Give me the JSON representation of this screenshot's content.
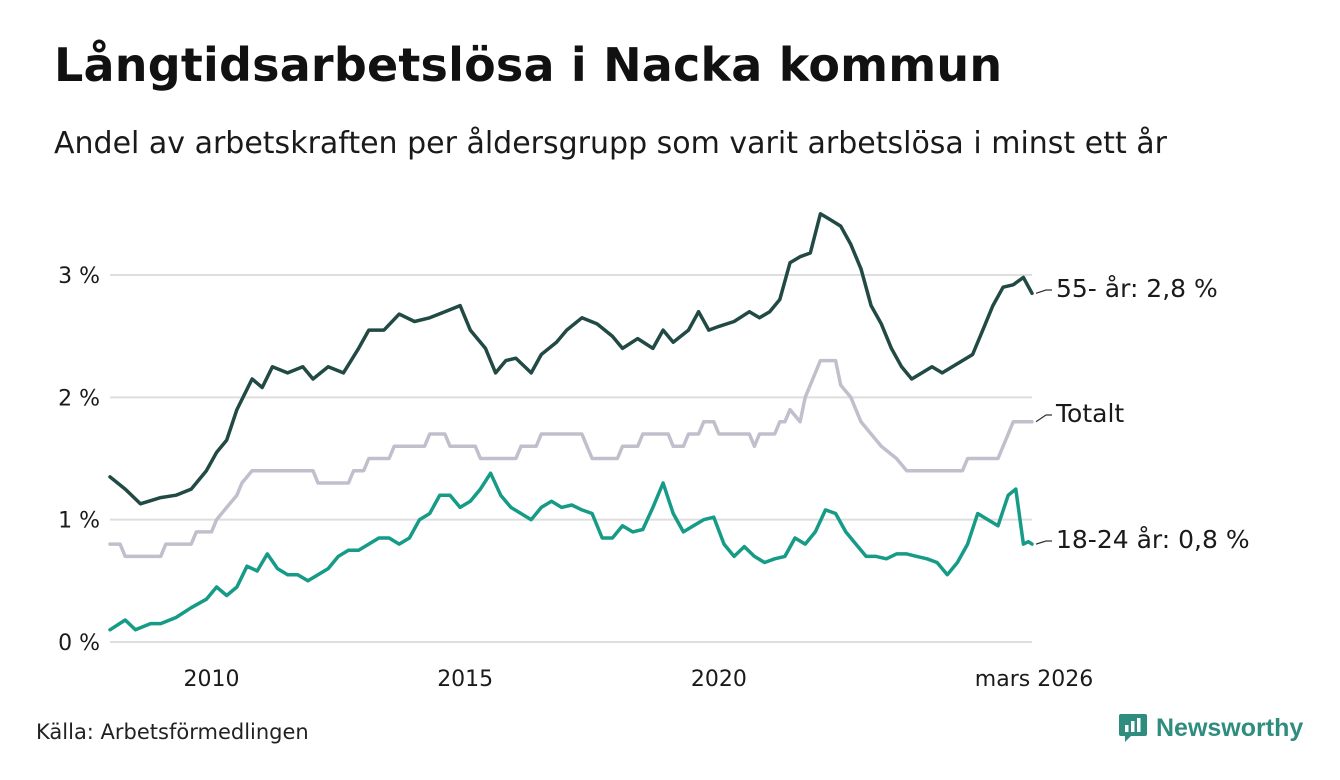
{
  "title": "Långtidsarbetslösa i Nacka kommun",
  "subtitle": "Andel av arbetskraften per åldersgrupp som varit arbetslösa i minst ett år",
  "source": "Källa: Arbetsförmedlingen",
  "brand": "Newsworthy",
  "colors": {
    "series_55": "#224a45",
    "series_total": "#c2bfcc",
    "series_18": "#169b87",
    "grid": "#dedede",
    "brand": "#2e8d7e"
  },
  "chart_data": {
    "type": "line",
    "title": "Långtidsarbetslösa i Nacka kommun",
    "xlabel": "",
    "ylabel": "",
    "xlim": [
      2008.0,
      2026.17
    ],
    "ylim": [
      0,
      3.6
    ],
    "y_ticks": [
      {
        "value": 0,
        "label": "0 %"
      },
      {
        "value": 1,
        "label": "1 %"
      },
      {
        "value": 2,
        "label": "2 %"
      },
      {
        "value": 3,
        "label": "3 %"
      }
    ],
    "x_ticks": [
      {
        "value": 2010,
        "label": "2010"
      },
      {
        "value": 2015,
        "label": "2015"
      },
      {
        "value": 2020,
        "label": "2020"
      },
      {
        "value": 2026.17,
        "label": "mars 2026"
      }
    ],
    "series": [
      {
        "name": "55- år",
        "end_label": "55- år: 2,8 %",
        "color": "#224a45",
        "points": [
          [
            2008.0,
            1.35
          ],
          [
            2008.3,
            1.25
          ],
          [
            2008.6,
            1.13
          ],
          [
            2009.0,
            1.18
          ],
          [
            2009.3,
            1.2
          ],
          [
            2009.6,
            1.25
          ],
          [
            2009.9,
            1.4
          ],
          [
            2010.1,
            1.55
          ],
          [
            2010.3,
            1.65
          ],
          [
            2010.5,
            1.9
          ],
          [
            2010.8,
            2.15
          ],
          [
            2011.0,
            2.08
          ],
          [
            2011.2,
            2.25
          ],
          [
            2011.5,
            2.2
          ],
          [
            2011.8,
            2.25
          ],
          [
            2012.0,
            2.15
          ],
          [
            2012.3,
            2.25
          ],
          [
            2012.6,
            2.2
          ],
          [
            2012.9,
            2.4
          ],
          [
            2013.1,
            2.55
          ],
          [
            2013.4,
            2.55
          ],
          [
            2013.7,
            2.68
          ],
          [
            2014.0,
            2.62
          ],
          [
            2014.3,
            2.65
          ],
          [
            2014.6,
            2.7
          ],
          [
            2014.9,
            2.75
          ],
          [
            2015.1,
            2.55
          ],
          [
            2015.4,
            2.4
          ],
          [
            2015.6,
            2.2
          ],
          [
            2015.8,
            2.3
          ],
          [
            2016.0,
            2.32
          ],
          [
            2016.3,
            2.2
          ],
          [
            2016.5,
            2.35
          ],
          [
            2016.8,
            2.45
          ],
          [
            2017.0,
            2.55
          ],
          [
            2017.3,
            2.65
          ],
          [
            2017.6,
            2.6
          ],
          [
            2017.9,
            2.5
          ],
          [
            2018.1,
            2.4
          ],
          [
            2018.4,
            2.48
          ],
          [
            2018.7,
            2.4
          ],
          [
            2018.9,
            2.55
          ],
          [
            2019.1,
            2.45
          ],
          [
            2019.4,
            2.55
          ],
          [
            2019.6,
            2.7
          ],
          [
            2019.8,
            2.55
          ],
          [
            2020.0,
            2.58
          ],
          [
            2020.3,
            2.62
          ],
          [
            2020.6,
            2.7
          ],
          [
            2020.8,
            2.65
          ],
          [
            2021.0,
            2.7
          ],
          [
            2021.2,
            2.8
          ],
          [
            2021.4,
            3.1
          ],
          [
            2021.6,
            3.15
          ],
          [
            2021.8,
            3.18
          ],
          [
            2022.0,
            3.5
          ],
          [
            2022.2,
            3.45
          ],
          [
            2022.4,
            3.4
          ],
          [
            2022.6,
            3.25
          ],
          [
            2022.8,
            3.05
          ],
          [
            2023.0,
            2.75
          ],
          [
            2023.2,
            2.6
          ],
          [
            2023.4,
            2.4
          ],
          [
            2023.6,
            2.25
          ],
          [
            2023.8,
            2.15
          ],
          [
            2024.0,
            2.2
          ],
          [
            2024.2,
            2.25
          ],
          [
            2024.4,
            2.2
          ],
          [
            2024.6,
            2.25
          ],
          [
            2024.8,
            2.3
          ],
          [
            2025.0,
            2.35
          ],
          [
            2025.2,
            2.55
          ],
          [
            2025.4,
            2.75
          ],
          [
            2025.6,
            2.9
          ],
          [
            2025.8,
            2.92
          ],
          [
            2026.0,
            2.98
          ],
          [
            2026.17,
            2.85
          ]
        ]
      },
      {
        "name": "Totalt",
        "end_label": "Totalt",
        "color": "#c2bfcc",
        "points": [
          [
            2008.0,
            0.8
          ],
          [
            2008.2,
            0.8
          ],
          [
            2008.3,
            0.7
          ],
          [
            2009.0,
            0.7
          ],
          [
            2009.1,
            0.8
          ],
          [
            2009.6,
            0.8
          ],
          [
            2009.7,
            0.9
          ],
          [
            2010.0,
            0.9
          ],
          [
            2010.1,
            1.0
          ],
          [
            2010.3,
            1.1
          ],
          [
            2010.5,
            1.2
          ],
          [
            2010.6,
            1.3
          ],
          [
            2010.8,
            1.4
          ],
          [
            2012.0,
            1.4
          ],
          [
            2012.1,
            1.3
          ],
          [
            2012.7,
            1.3
          ],
          [
            2012.8,
            1.4
          ],
          [
            2013.0,
            1.4
          ],
          [
            2013.1,
            1.5
          ],
          [
            2013.5,
            1.5
          ],
          [
            2013.6,
            1.6
          ],
          [
            2014.2,
            1.6
          ],
          [
            2014.3,
            1.7
          ],
          [
            2014.6,
            1.7
          ],
          [
            2014.7,
            1.6
          ],
          [
            2015.2,
            1.6
          ],
          [
            2015.3,
            1.5
          ],
          [
            2016.0,
            1.5
          ],
          [
            2016.1,
            1.6
          ],
          [
            2016.4,
            1.6
          ],
          [
            2016.5,
            1.7
          ],
          [
            2017.3,
            1.7
          ],
          [
            2017.4,
            1.6
          ],
          [
            2017.5,
            1.5
          ],
          [
            2018.0,
            1.5
          ],
          [
            2018.1,
            1.6
          ],
          [
            2018.4,
            1.6
          ],
          [
            2018.5,
            1.7
          ],
          [
            2019.0,
            1.7
          ],
          [
            2019.1,
            1.6
          ],
          [
            2019.3,
            1.6
          ],
          [
            2019.4,
            1.7
          ],
          [
            2019.6,
            1.7
          ],
          [
            2019.7,
            1.8
          ],
          [
            2019.9,
            1.8
          ],
          [
            2020.0,
            1.7
          ],
          [
            2020.6,
            1.7
          ],
          [
            2020.7,
            1.6
          ],
          [
            2020.8,
            1.7
          ],
          [
            2021.1,
            1.7
          ],
          [
            2021.2,
            1.8
          ],
          [
            2021.3,
            1.8
          ],
          [
            2021.4,
            1.9
          ],
          [
            2021.6,
            1.8
          ],
          [
            2021.7,
            2.0
          ],
          [
            2021.9,
            2.2
          ],
          [
            2022.0,
            2.3
          ],
          [
            2022.3,
            2.3
          ],
          [
            2022.4,
            2.1
          ],
          [
            2022.6,
            2.0
          ],
          [
            2022.7,
            1.9
          ],
          [
            2022.8,
            1.8
          ],
          [
            2023.0,
            1.7
          ],
          [
            2023.2,
            1.6
          ],
          [
            2023.5,
            1.5
          ],
          [
            2023.7,
            1.4
          ],
          [
            2024.8,
            1.4
          ],
          [
            2024.9,
            1.5
          ],
          [
            2025.5,
            1.5
          ],
          [
            2025.6,
            1.6
          ],
          [
            2025.7,
            1.7
          ],
          [
            2025.8,
            1.8
          ],
          [
            2026.17,
            1.8
          ]
        ]
      },
      {
        "name": "18-24 år",
        "end_label": "18-24 år: 0,8 %",
        "color": "#169b87",
        "points": [
          [
            2008.0,
            0.1
          ],
          [
            2008.3,
            0.18
          ],
          [
            2008.5,
            0.1
          ],
          [
            2008.8,
            0.15
          ],
          [
            2009.0,
            0.15
          ],
          [
            2009.3,
            0.2
          ],
          [
            2009.6,
            0.28
          ],
          [
            2009.9,
            0.35
          ],
          [
            2010.1,
            0.45
          ],
          [
            2010.3,
            0.38
          ],
          [
            2010.5,
            0.45
          ],
          [
            2010.7,
            0.62
          ],
          [
            2010.9,
            0.58
          ],
          [
            2011.1,
            0.72
          ],
          [
            2011.3,
            0.6
          ],
          [
            2011.5,
            0.55
          ],
          [
            2011.7,
            0.55
          ],
          [
            2011.9,
            0.5
          ],
          [
            2012.1,
            0.55
          ],
          [
            2012.3,
            0.6
          ],
          [
            2012.5,
            0.7
          ],
          [
            2012.7,
            0.75
          ],
          [
            2012.9,
            0.75
          ],
          [
            2013.1,
            0.8
          ],
          [
            2013.3,
            0.85
          ],
          [
            2013.5,
            0.85
          ],
          [
            2013.7,
            0.8
          ],
          [
            2013.9,
            0.85
          ],
          [
            2014.1,
            1.0
          ],
          [
            2014.3,
            1.05
          ],
          [
            2014.5,
            1.2
          ],
          [
            2014.7,
            1.2
          ],
          [
            2014.9,
            1.1
          ],
          [
            2015.1,
            1.15
          ],
          [
            2015.3,
            1.25
          ],
          [
            2015.5,
            1.38
          ],
          [
            2015.7,
            1.2
          ],
          [
            2015.9,
            1.1
          ],
          [
            2016.1,
            1.05
          ],
          [
            2016.3,
            1.0
          ],
          [
            2016.5,
            1.1
          ],
          [
            2016.7,
            1.15
          ],
          [
            2016.9,
            1.1
          ],
          [
            2017.1,
            1.12
          ],
          [
            2017.3,
            1.08
          ],
          [
            2017.5,
            1.05
          ],
          [
            2017.7,
            0.85
          ],
          [
            2017.9,
            0.85
          ],
          [
            2018.1,
            0.95
          ],
          [
            2018.3,
            0.9
          ],
          [
            2018.5,
            0.92
          ],
          [
            2018.7,
            1.1
          ],
          [
            2018.9,
            1.3
          ],
          [
            2019.1,
            1.05
          ],
          [
            2019.3,
            0.9
          ],
          [
            2019.5,
            0.95
          ],
          [
            2019.7,
            1.0
          ],
          [
            2019.9,
            1.02
          ],
          [
            2020.1,
            0.8
          ],
          [
            2020.3,
            0.7
          ],
          [
            2020.5,
            0.78
          ],
          [
            2020.7,
            0.7
          ],
          [
            2020.9,
            0.65
          ],
          [
            2021.1,
            0.68
          ],
          [
            2021.3,
            0.7
          ],
          [
            2021.5,
            0.85
          ],
          [
            2021.7,
            0.8
          ],
          [
            2021.9,
            0.9
          ],
          [
            2022.1,
            1.08
          ],
          [
            2022.3,
            1.05
          ],
          [
            2022.5,
            0.9
          ],
          [
            2022.7,
            0.8
          ],
          [
            2022.9,
            0.7
          ],
          [
            2023.1,
            0.7
          ],
          [
            2023.3,
            0.68
          ],
          [
            2023.5,
            0.72
          ],
          [
            2023.7,
            0.72
          ],
          [
            2023.9,
            0.7
          ],
          [
            2024.1,
            0.68
          ],
          [
            2024.3,
            0.65
          ],
          [
            2024.5,
            0.55
          ],
          [
            2024.7,
            0.65
          ],
          [
            2024.9,
            0.8
          ],
          [
            2025.1,
            1.05
          ],
          [
            2025.3,
            1.0
          ],
          [
            2025.5,
            0.95
          ],
          [
            2025.7,
            1.2
          ],
          [
            2025.85,
            1.25
          ],
          [
            2026.0,
            0.8
          ],
          [
            2026.1,
            0.82
          ],
          [
            2026.17,
            0.8
          ]
        ]
      }
    ]
  }
}
